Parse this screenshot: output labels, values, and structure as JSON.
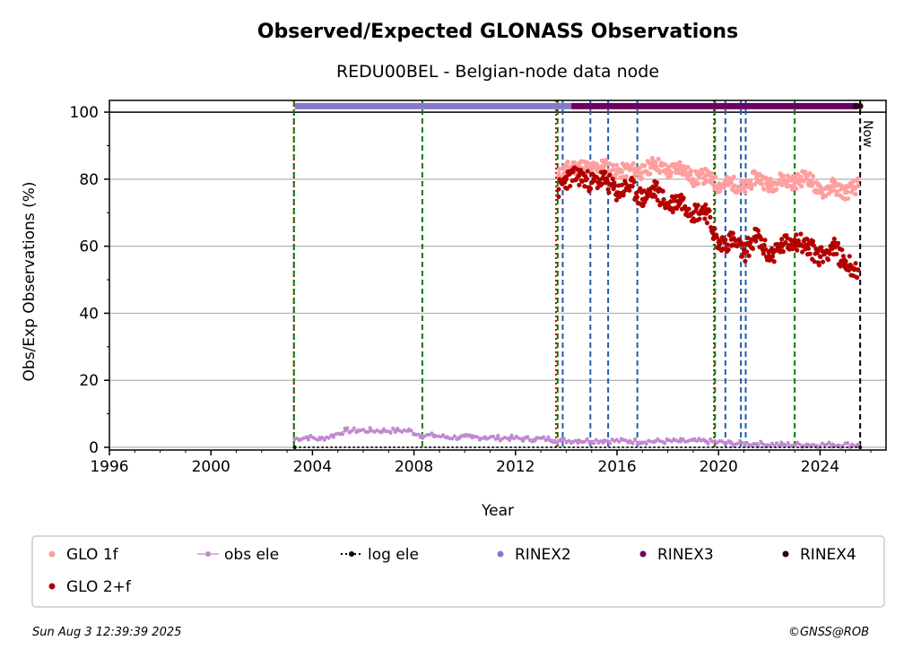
{
  "chart_data": {
    "type": "scatter",
    "title": "Observed/Expected GLONASS Observations",
    "subtitle": "REDU00BEL - Belgian-node data node",
    "xlabel": "Year",
    "ylabel": "Obs/Exp Observations (%)",
    "xlim": [
      1996,
      2026.6
    ],
    "ylim": [
      -0.8,
      103.5
    ],
    "x_ticks": [
      1996,
      2000,
      2004,
      2008,
      2012,
      2016,
      2020,
      2024
    ],
    "y_ticks": [
      0,
      20,
      40,
      60,
      80,
      100
    ],
    "grid": "horizontal",
    "reference_line_y": 100,
    "now_label": "Now",
    "now_x": 2025.58,
    "vlines": [
      {
        "x": 2003.27,
        "color": "#cc0000",
        "style": "dotted"
      },
      {
        "x": 2003.27,
        "color": "#008000",
        "style": "dashed"
      },
      {
        "x": 2008.33,
        "color": "#008000",
        "style": "dashed"
      },
      {
        "x": 2013.6,
        "color": "#cc0000",
        "style": "dotted"
      },
      {
        "x": 2013.66,
        "color": "#008000",
        "style": "dashed"
      },
      {
        "x": 2013.86,
        "color": "#1f5faa",
        "style": "dashed"
      },
      {
        "x": 2014.95,
        "color": "#1f5faa",
        "style": "dashed"
      },
      {
        "x": 2015.65,
        "color": "#1f5faa",
        "style": "dashed"
      },
      {
        "x": 2016.8,
        "color": "#1f5faa",
        "style": "dashed"
      },
      {
        "x": 2019.82,
        "color": "#cc0000",
        "style": "dotted"
      },
      {
        "x": 2019.86,
        "color": "#008000",
        "style": "dashed"
      },
      {
        "x": 2020.27,
        "color": "#1f5faa",
        "style": "dashed"
      },
      {
        "x": 2020.88,
        "color": "#1f5faa",
        "style": "dashed"
      },
      {
        "x": 2021.07,
        "color": "#1f5faa",
        "style": "dashed"
      },
      {
        "x": 2023.0,
        "color": "#008000",
        "style": "dashed"
      }
    ],
    "series": [
      {
        "name": "GLO 1f",
        "color": "#ff9e9e",
        "marker": "dot",
        "x": [
          2013.7,
          2014.0,
          2014.5,
          2015.0,
          2015.5,
          2016.0,
          2016.5,
          2017.0,
          2017.5,
          2018.0,
          2018.5,
          2019.0,
          2019.5,
          2020.0,
          2020.5,
          2021.0,
          2021.5,
          2022.0,
          2022.5,
          2023.0,
          2023.5,
          2024.0,
          2024.5,
          2025.0,
          2025.5
        ],
        "values": [
          81,
          83,
          84,
          83,
          84,
          82,
          83,
          82,
          85,
          82,
          84,
          80,
          81,
          78,
          79,
          77,
          81,
          78,
          80,
          79,
          81,
          76,
          78,
          76,
          78
        ]
      },
      {
        "name": "GLO 2+f",
        "color": "#b20000",
        "marker": "dot",
        "x": [
          2013.7,
          2014.0,
          2014.5,
          2015.0,
          2015.5,
          2016.0,
          2016.5,
          2017.0,
          2017.5,
          2018.0,
          2018.5,
          2019.0,
          2019.5,
          2020.0,
          2020.5,
          2021.0,
          2021.5,
          2022.0,
          2022.5,
          2023.0,
          2023.5,
          2024.0,
          2024.5,
          2025.0,
          2025.5
        ],
        "values": [
          77,
          80,
          81,
          79,
          80,
          76,
          78,
          74,
          77,
          72,
          74,
          70,
          71,
          60,
          62,
          58,
          63,
          57,
          60,
          62,
          60,
          57,
          60,
          55,
          53
        ]
      },
      {
        "name": "obs ele",
        "color": "#c08ad0",
        "marker": "dot-line",
        "x": [
          2003.3,
          2003.8,
          2004.3,
          2004.8,
          2005.3,
          2005.8,
          2006.3,
          2006.8,
          2007.3,
          2007.8,
          2008.3,
          2008.8,
          2009.3,
          2009.8,
          2010.3,
          2010.8,
          2011.3,
          2011.8,
          2012.3,
          2012.8,
          2013.3,
          2013.8,
          2014.5,
          2015.5,
          2016.5,
          2017.5,
          2018.5,
          2019.5,
          2020.5,
          2021.5,
          2022.5,
          2023.5,
          2024.5,
          2025.5
        ],
        "values": [
          2.5,
          3,
          2.5,
          3.5,
          5,
          5,
          5,
          5,
          5,
          5,
          3.5,
          3.5,
          3,
          3,
          3,
          3,
          2.8,
          2.8,
          2.5,
          2.5,
          2.5,
          2,
          2,
          2,
          1.8,
          1.8,
          1.8,
          1.8,
          1.2,
          1,
          0.8,
          0.8,
          0.8,
          0.8
        ]
      },
      {
        "name": "log ele",
        "color": "#000000",
        "marker": "dot-dotted-line",
        "x": [
          2003.3,
          2025.58
        ],
        "values": [
          0,
          0
        ]
      },
      {
        "name": "RINEX2",
        "color": "#8878c8",
        "marker": "band",
        "x": [
          2003.3,
          2014.2
        ],
        "values": [
          101.8,
          101.8
        ]
      },
      {
        "name": "RINEX3",
        "color": "#6b0060",
        "marker": "band",
        "x": [
          2014.2,
          2025.5
        ],
        "values": [
          101.8,
          101.8
        ]
      },
      {
        "name": "RINEX4",
        "color": "#2a0014",
        "marker": "dot",
        "x": [
          2025.4,
          2025.58
        ],
        "values": [
          101.8,
          101.8
        ]
      }
    ],
    "legend_placement": "bottom",
    "legend_order": [
      "GLO 1f",
      "obs ele",
      "log ele",
      "RINEX2",
      "RINEX3",
      "RINEX4",
      "GLO 2+f"
    ]
  },
  "footer": {
    "timestamp": "Sun Aug  3 12:39:39 2025",
    "copyright": "©GNSS@ROB"
  }
}
